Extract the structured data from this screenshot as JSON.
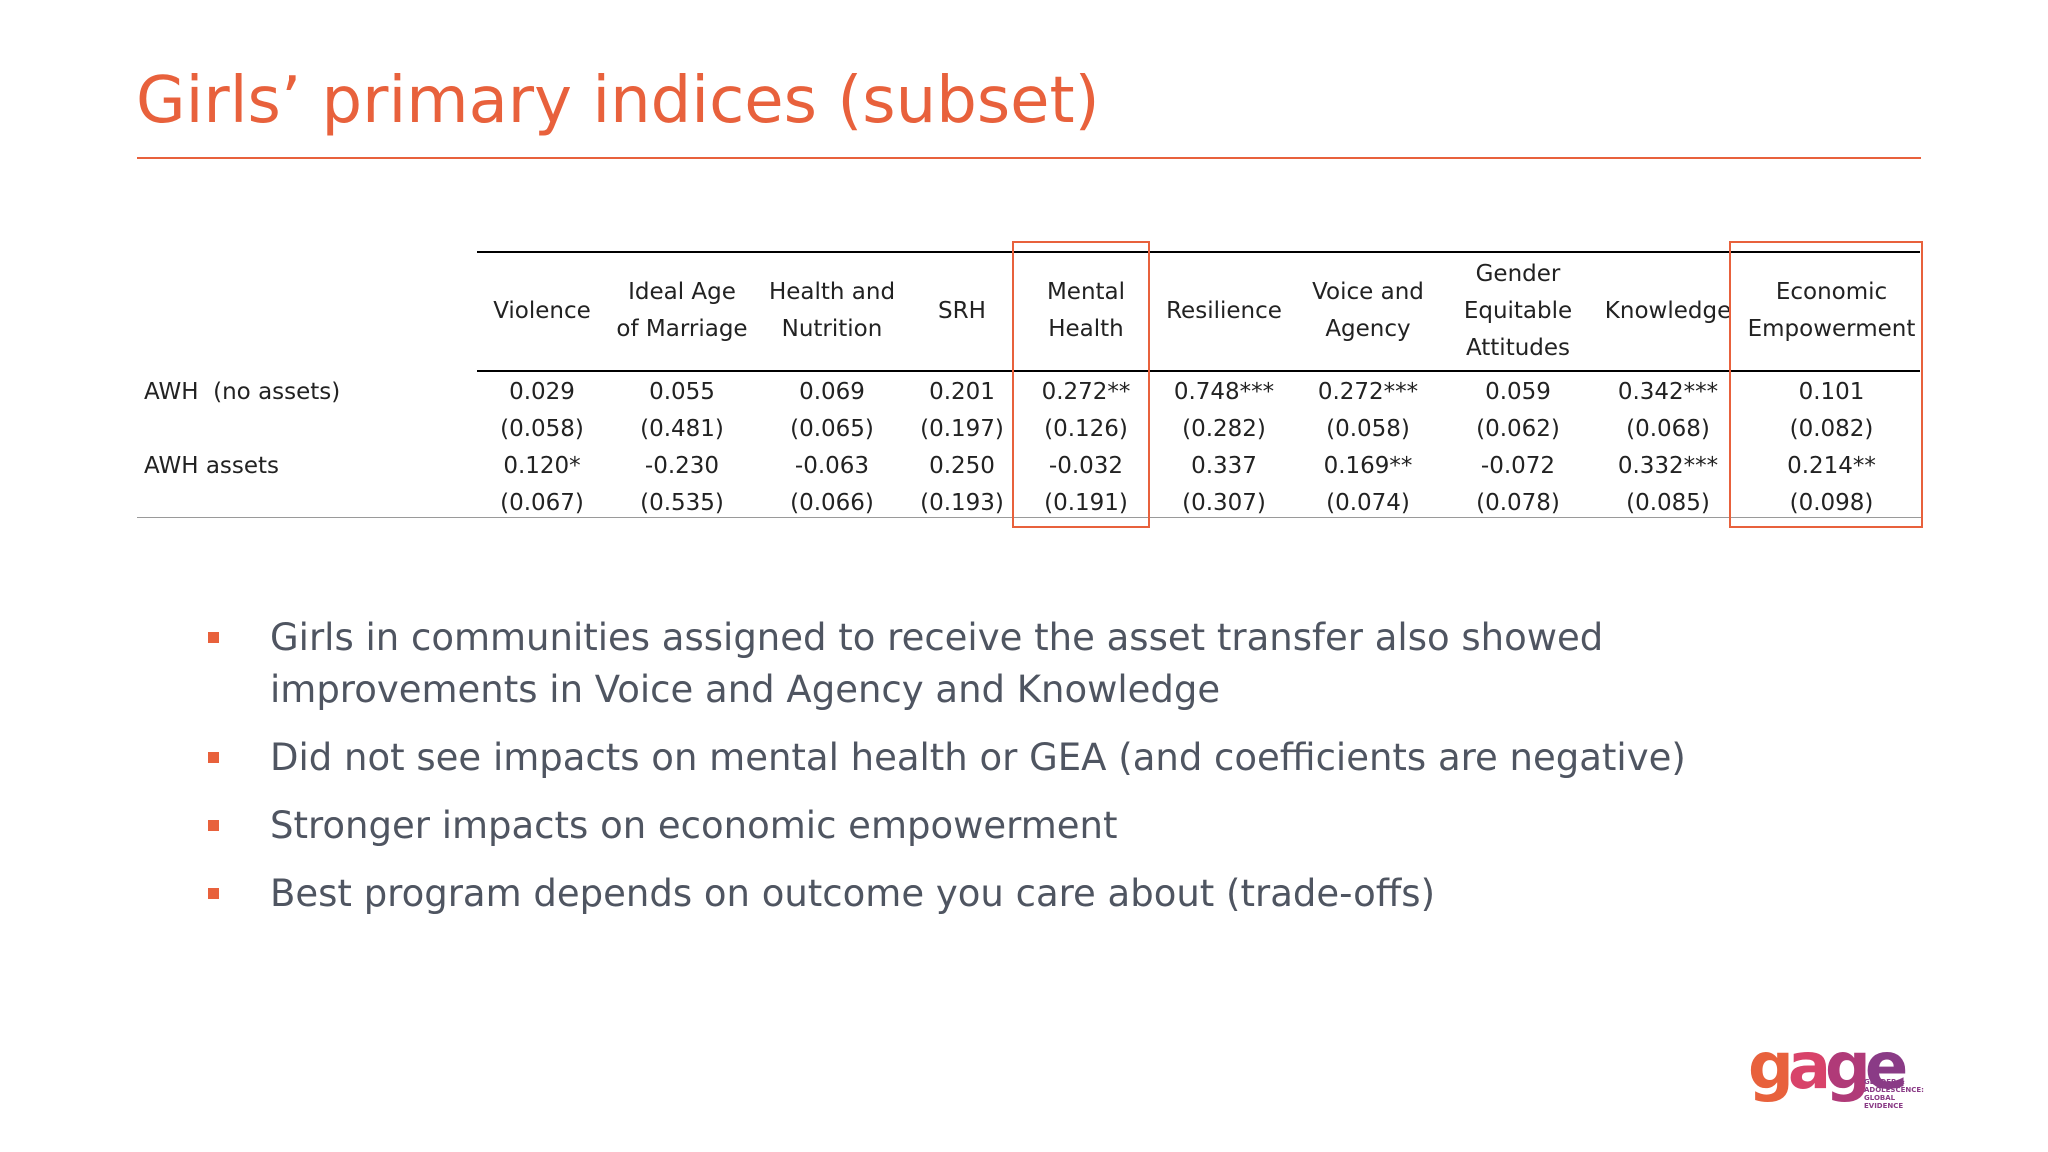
{
  "slide": {
    "title": "Girls’ primary indices (subset)"
  },
  "table": {
    "columns": [
      "Violence",
      "Ideal Age\nof Marriage",
      "Health and\nNutrition",
      "SRH",
      "Mental\nHealth",
      "Resilience",
      "Voice and\nAgency",
      "Gender\nEquitable\nAttitudes",
      "Knowledge",
      "Economic\nEmpowerment"
    ],
    "rows": [
      {
        "label": "AWH  (no assets)",
        "coefficients": [
          "0.029",
          "0.055",
          "0.069",
          "0.201",
          "0.272**",
          "0.748***",
          "0.272***",
          "0.059",
          "0.342***",
          "0.101"
        ],
        "std_errors": [
          "(0.058)",
          "(0.481)",
          "(0.065)",
          "(0.197)",
          "(0.126)",
          "(0.282)",
          "(0.058)",
          "(0.062)",
          "(0.068)",
          "(0.082)"
        ]
      },
      {
        "label": "AWH assets",
        "coefficients": [
          "0.120*",
          "-0.230",
          "-0.063",
          "0.250",
          "-0.032",
          "0.337",
          "0.169**",
          "-0.072",
          "0.332***",
          "0.214**"
        ],
        "std_errors": [
          "(0.067)",
          "(0.535)",
          "(0.066)",
          "(0.193)",
          "(0.191)",
          "(0.307)",
          "(0.074)",
          "(0.078)",
          "(0.085)",
          "(0.098)"
        ]
      }
    ],
    "highlighted_columns": [
      "Mental Health",
      "Economic Empowerment"
    ],
    "highlight_color": "#e8613c"
  },
  "bullets": [
    "Girls in communities assigned to receive the asset transfer also showed improvements in Voice and Agency and Knowledge",
    "Did not see impacts on mental health or GEA (and coefficients are negative)",
    "Stronger impacts on economic empowerment",
    "Best program depends on outcome you care about (trade-offs)"
  ],
  "logo": {
    "word_parts": [
      "g",
      "a",
      "g",
      "e"
    ],
    "tagline": "GENDER &\nADOLESCENCE:\nGLOBAL\nEVIDENCE"
  },
  "colors": {
    "accent": "#e8613c",
    "body_text": "#4f5561"
  }
}
